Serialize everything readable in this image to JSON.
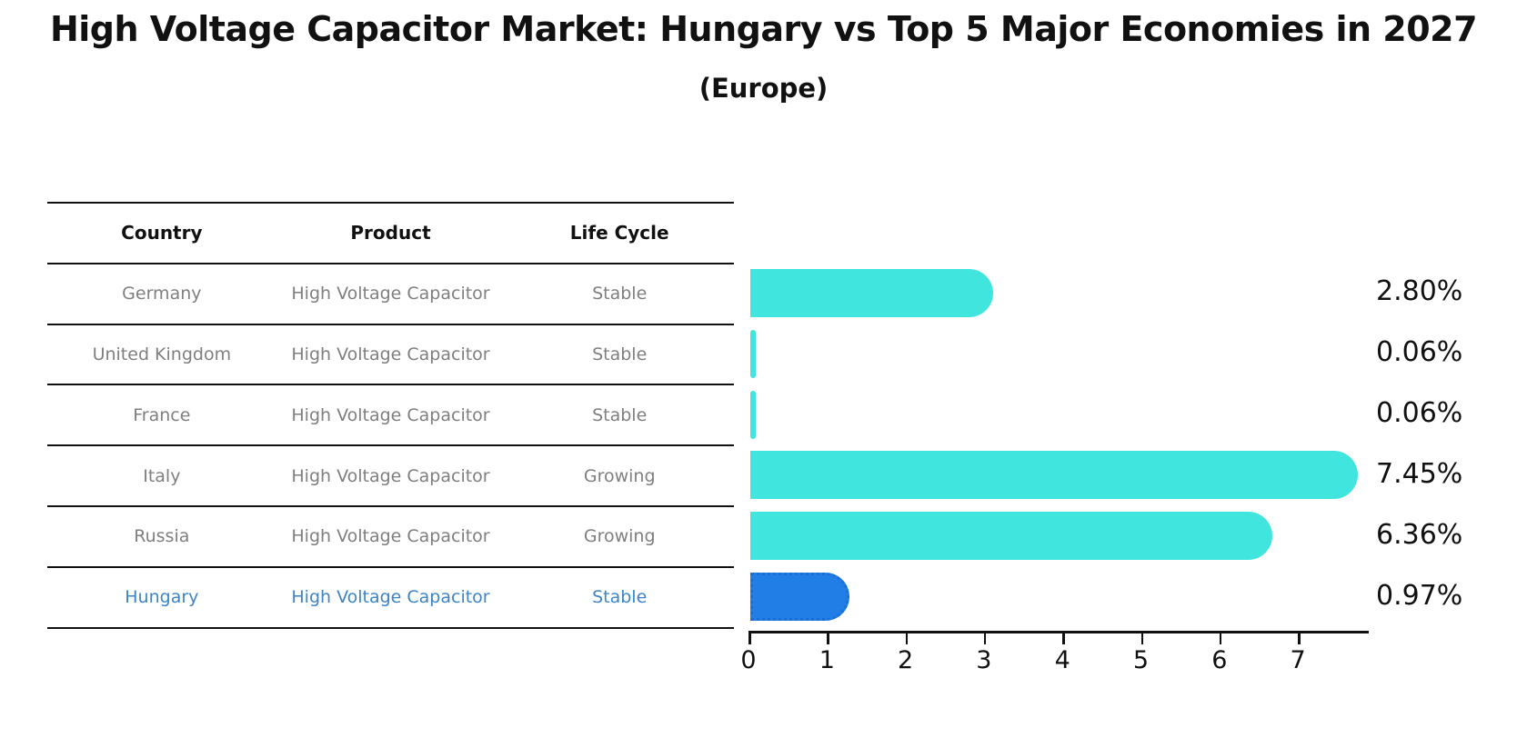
{
  "title": "High Voltage Capacitor Market: Hungary vs Top 5 Major Economies in 2027",
  "subtitle": "(Europe)",
  "table": {
    "headers": [
      "Country",
      "Product",
      "Life Cycle"
    ],
    "rows": [
      {
        "country": "Germany",
        "product": "High Voltage Capacitor",
        "life_cycle": "Stable"
      },
      {
        "country": "United Kingdom",
        "product": "High Voltage Capacitor",
        "life_cycle": "Stable"
      },
      {
        "country": "France",
        "product": "High Voltage Capacitor",
        "life_cycle": "Stable"
      },
      {
        "country": "Italy",
        "product": "High Voltage Capacitor",
        "life_cycle": "Growing"
      },
      {
        "country": "Russia",
        "product": "High Voltage Capacitor",
        "life_cycle": "Growing"
      },
      {
        "country": "Hungary",
        "product": "High Voltage Capacitor",
        "life_cycle": "Stable"
      }
    ],
    "highlighted_row": "Hungary"
  },
  "chart_data": {
    "type": "bar",
    "orientation": "horizontal",
    "title": "High Voltage Capacitor Market: Hungary vs Top 5 Major Economies in 2027",
    "subtitle": "(Europe)",
    "categories": [
      "Germany",
      "United Kingdom",
      "France",
      "Italy",
      "Russia",
      "Hungary"
    ],
    "values": [
      2.8,
      0.06,
      0.06,
      7.45,
      6.36,
      0.97
    ],
    "value_labels": [
      "2.80%",
      "0.06%",
      "0.06%",
      "7.45%",
      "6.36%",
      "0.97%"
    ],
    "x_ticks": [
      0,
      1,
      2,
      3,
      4,
      5,
      6,
      7
    ],
    "xlim": [
      0,
      7.9
    ],
    "grid": false,
    "legend": false,
    "bar_color": "#40E5DE",
    "highlight_index": 5,
    "highlight_bar_color": "#217EE6",
    "highlight_bar_border_color": "#1B6FD4"
  },
  "colors": {
    "header_text": "#111111",
    "row_text": "#7F7F7F",
    "highlight_text": "#3D85C6",
    "axis": "#111111",
    "background": "#FFFFFF"
  }
}
